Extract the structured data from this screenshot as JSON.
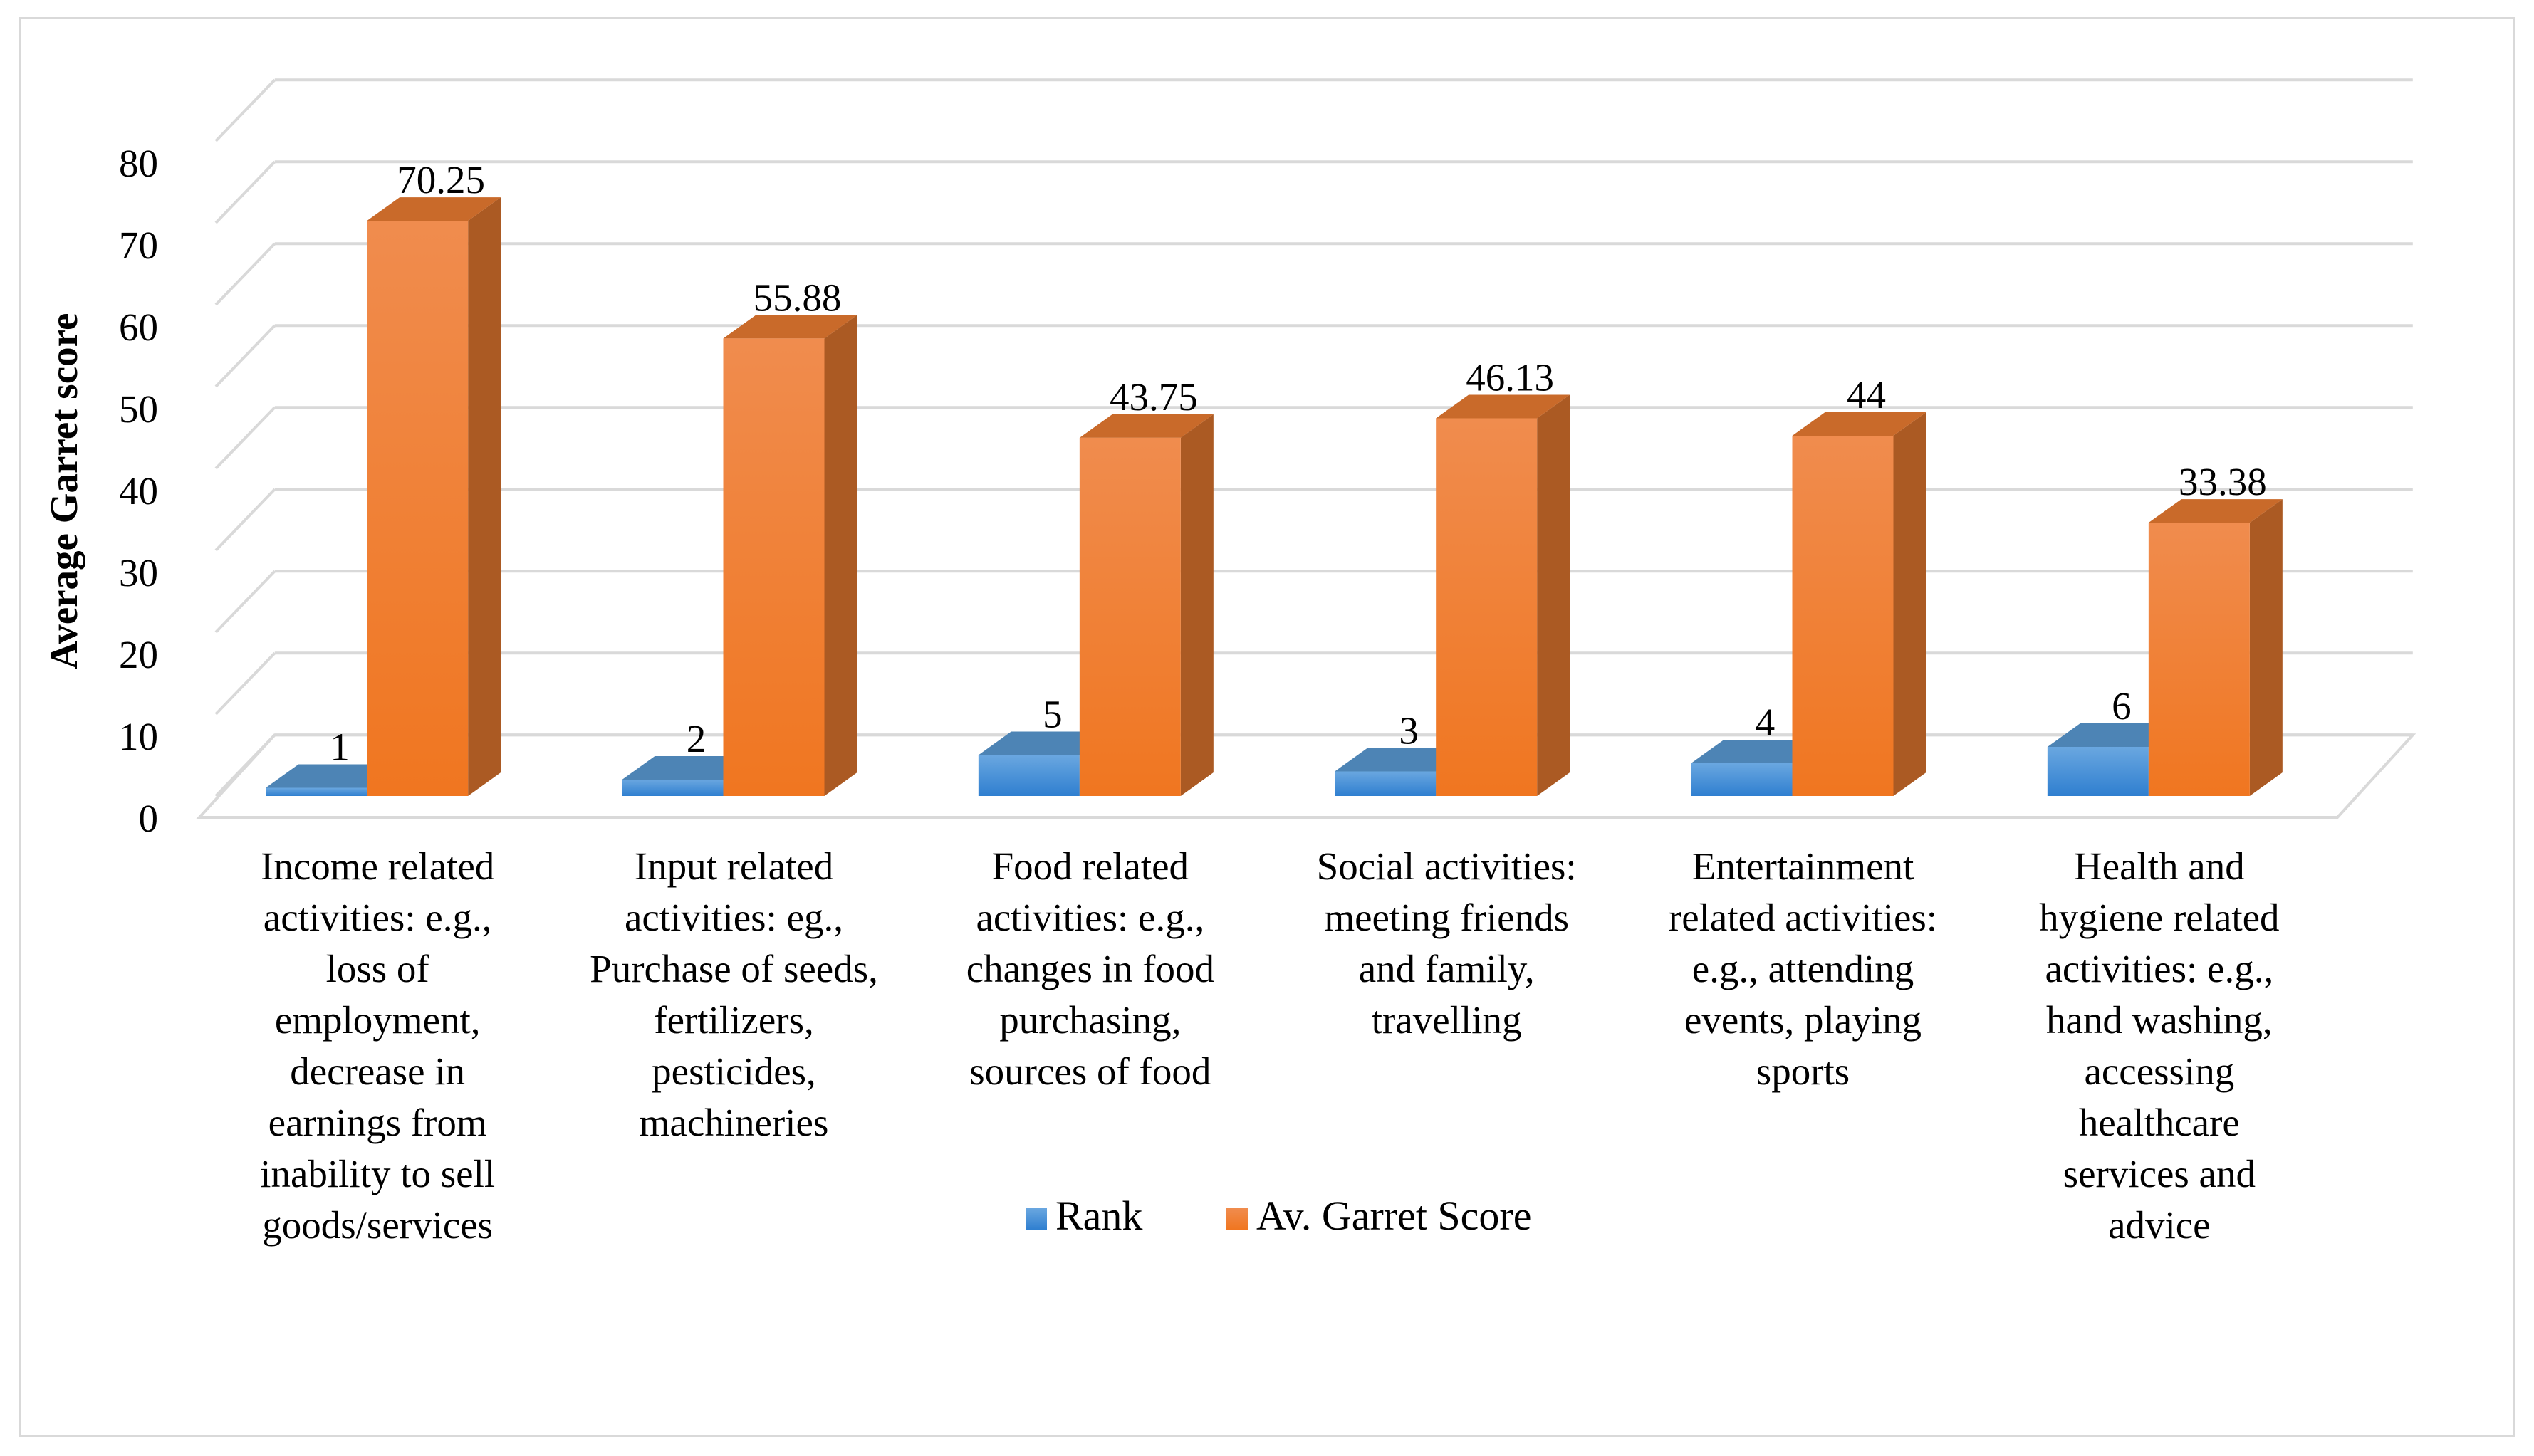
{
  "chart_data": {
    "type": "bar",
    "style": "3d-clustered-column",
    "title": "",
    "xlabel": "",
    "ylabel": "Average Garret score",
    "ylim": [
      0,
      80
    ],
    "yticks": [
      "0",
      "10",
      "20",
      "30",
      "40",
      "50",
      "60",
      "70",
      "80"
    ],
    "grid": true,
    "legend_position": "bottom-center",
    "categories": [
      [
        "Income related",
        "activities: e.g.,",
        "loss of",
        "employment,",
        "decrease in",
        "earnings from",
        "inability to sell",
        "goods/services"
      ],
      [
        "Input related",
        "activities: eg.,",
        "Purchase of seeds,",
        "fertilizers,",
        "pesticides,",
        "machineries"
      ],
      [
        "Food related",
        "activities: e.g.,",
        "changes in food",
        "purchasing,",
        "sources of food"
      ],
      [
        "Social activities:",
        "meeting friends",
        "and family,",
        "travelling"
      ],
      [
        "Entertainment",
        "related activities:",
        "e.g., attending",
        "events, playing",
        "sports"
      ],
      [
        "Health and",
        "hygiene related",
        "activities: e.g.,",
        "hand washing,",
        "accessing",
        "healthcare",
        "services and",
        "advice"
      ]
    ],
    "series": [
      {
        "name": "Rank",
        "values": [
          1,
          2,
          5,
          3,
          4,
          6
        ],
        "labels": [
          "1",
          "2",
          "5",
          "3",
          "4",
          "6"
        ],
        "color": "#5b9bd5"
      },
      {
        "name": "Av. Garret Score",
        "values": [
          70.25,
          55.88,
          43.75,
          46.13,
          44,
          33.38
        ],
        "labels": [
          "70.25",
          "55.88",
          "43.75",
          "46.13",
          "44",
          "33.38"
        ],
        "color": "#ed7d31"
      }
    ]
  }
}
